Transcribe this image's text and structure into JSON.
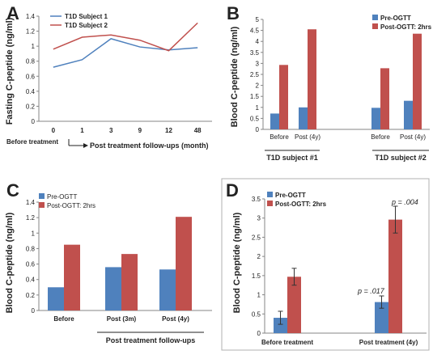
{
  "colors": {
    "blue": "#4f81bd",
    "red": "#c0504d",
    "axis": "#868686",
    "text": "#222222"
  },
  "chart_data": [
    {
      "panel": "A",
      "type": "line",
      "ylabel": "Fasting C-peptide (ng/ml)",
      "categories": [
        "0",
        "1",
        "3",
        "9",
        "12",
        "48"
      ],
      "ylim": [
        0,
        1.4
      ],
      "yticks": [
        "0",
        "0.2",
        "0.4",
        "0.6",
        "0.8",
        "1",
        "1.2",
        "1.4"
      ],
      "series": [
        {
          "name": "T1D Subject 1",
          "values": [
            0.72,
            0.82,
            1.1,
            0.99,
            0.95,
            0.98
          ]
        },
        {
          "name": "T1D Subject 2",
          "values": [
            0.96,
            1.12,
            1.15,
            1.08,
            0.94,
            1.31
          ]
        }
      ],
      "xlabel_left": "Before treatment",
      "xlabel_right": "Post treatment follow-ups (month)"
    },
    {
      "panel": "B",
      "type": "bar",
      "ylabel": "Blood C-peptide (ng/ml)",
      "categories": [
        "Before",
        "Post (4y)",
        "Before",
        "Post (4y)"
      ],
      "ylim": [
        0,
        5
      ],
      "yticks": [
        "0",
        "0.5",
        "1",
        "1.5",
        "2",
        "2.5",
        "3",
        "3.5",
        "4",
        "4.5",
        "5"
      ],
      "series": [
        {
          "name": "Pre-OGTT",
          "values": [
            0.72,
            1.0,
            0.98,
            1.3
          ]
        },
        {
          "name": "Post-OGTT: 2hrs",
          "values": [
            2.93,
            4.55,
            2.78,
            4.35
          ]
        }
      ],
      "groups": [
        "T1D subject #1",
        "T1D subject #2"
      ]
    },
    {
      "panel": "C",
      "type": "bar",
      "ylabel": "Blood C-peptide (ng/ml)",
      "categories": [
        "Before",
        "Post (3m)",
        "Post (4y)"
      ],
      "ylim": [
        0,
        1.4
      ],
      "yticks": [
        "0",
        "0.2",
        "0.4",
        "0.6",
        "0.8",
        "1",
        "1.2",
        "1.4"
      ],
      "series": [
        {
          "name": "Pre-OGTT",
          "values": [
            0.3,
            0.56,
            0.53
          ]
        },
        {
          "name": "Post-OGTT: 2hrs",
          "values": [
            0.85,
            0.73,
            1.21
          ]
        }
      ],
      "group_label": "Post treatment follow-ups"
    },
    {
      "panel": "D",
      "type": "bar",
      "ylabel": "Blood C-peptide (ng/ml)",
      "categories": [
        "Before treatment",
        "Post treatment (4y)"
      ],
      "ylim": [
        0,
        3.5
      ],
      "yticks": [
        "0",
        "0.5",
        "1",
        "1.5",
        "2",
        "2.5",
        "3",
        "3.5"
      ],
      "series": [
        {
          "name": "Pre-OGTT",
          "values": [
            0.4,
            0.81
          ],
          "errors": [
            0.17,
            0.16
          ]
        },
        {
          "name": "Post-OGTT: 2hrs",
          "values": [
            1.47,
            2.96
          ],
          "errors": [
            0.22,
            0.35
          ]
        }
      ],
      "annotations": [
        "p = .017",
        "p = .004"
      ]
    }
  ]
}
